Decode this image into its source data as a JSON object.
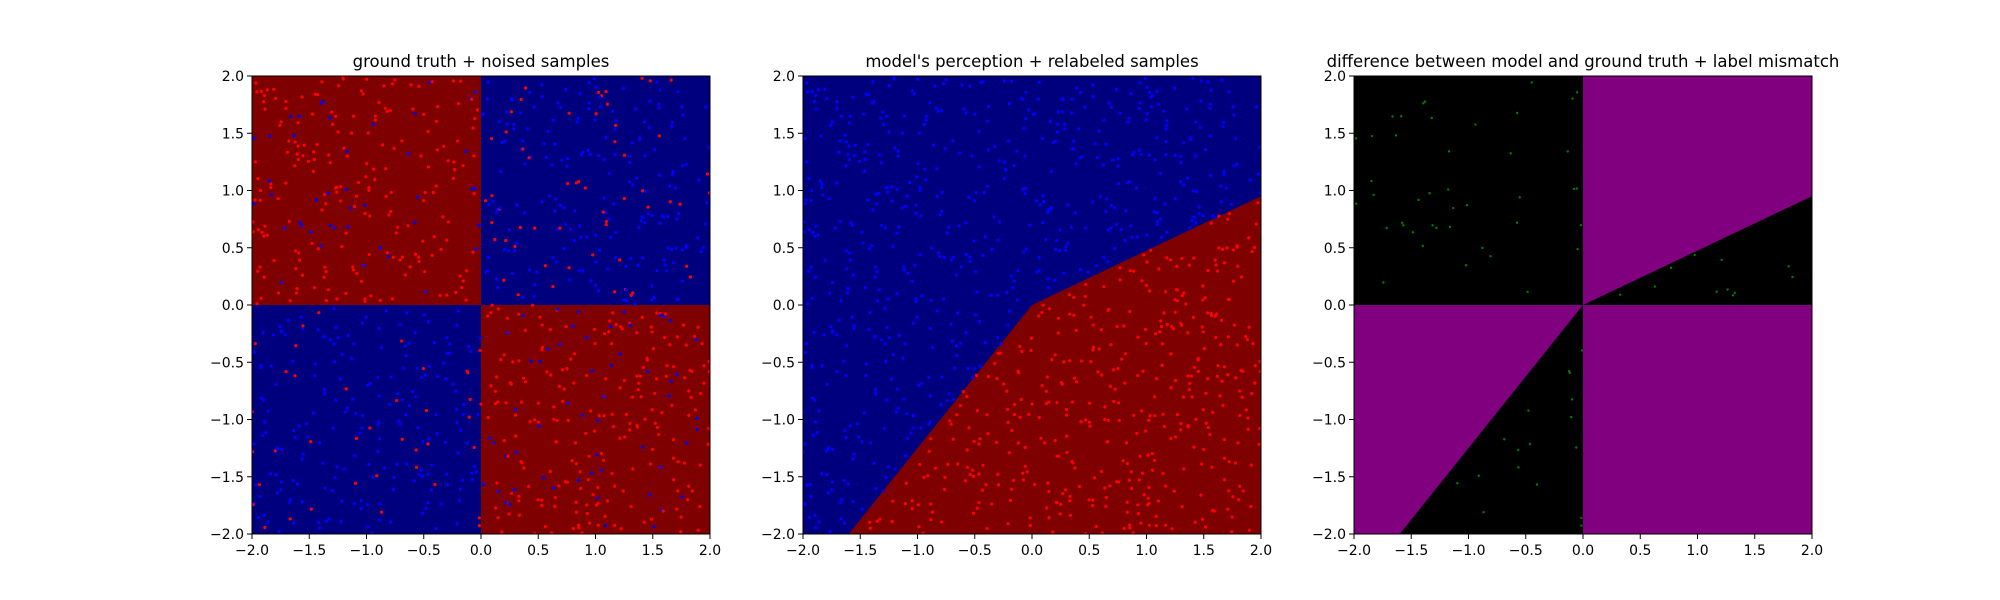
{
  "chart_data": [
    {
      "type": "scatter",
      "title": "ground truth + noised samples",
      "xlim": [
        -2,
        2
      ],
      "ylim": [
        -2,
        2
      ],
      "xticks": [
        "−2.0",
        "−1.5",
        "−1.0",
        "−0.5",
        "0.0",
        "0.5",
        "1.0",
        "1.5",
        "2.0"
      ],
      "yticks": [
        "−2.0",
        "−1.5",
        "−1.0",
        "−0.5",
        "0.0",
        "0.5",
        "1.0",
        "1.5",
        "2.0"
      ],
      "grid": false,
      "background_regions": "xor quadrants: dark red where x*y<0, navy where x*y>0",
      "region_colors": {
        "positive_xy": "#00007f",
        "negative_xy": "#7f0000"
      },
      "point_colors": {
        "red": "#ff0000",
        "blue": "#0000ff"
      },
      "point_count_approx": 1000
    },
    {
      "type": "scatter",
      "title": "model's perception + relabeled samples",
      "xlim": [
        -2,
        2
      ],
      "ylim": [
        -2,
        2
      ],
      "xticks": [
        "−2.0",
        "−1.5",
        "−1.0",
        "−0.5",
        "0.0",
        "0.5",
        "1.0",
        "1.5",
        "2.0"
      ],
      "yticks": [
        "−2.0",
        "−1.5",
        "−1.0",
        "−0.5",
        "0.0",
        "0.5",
        "1.0",
        "1.5",
        "2.0"
      ],
      "grid": false,
      "decision_boundary": [
        [
          -1.6,
          -2.0
        ],
        [
          0.0,
          0.0
        ],
        [
          2.0,
          0.95
        ]
      ],
      "region_colors": {
        "above": "#00007f",
        "below": "#7f0000"
      },
      "point_colors": {
        "red": "#ff0000",
        "blue": "#0000ff"
      },
      "point_count_approx": 1000
    },
    {
      "type": "scatter",
      "title": "difference between model and ground truth + label mismatch",
      "xlim": [
        -2,
        2
      ],
      "ylim": [
        -2,
        2
      ],
      "xticks": [
        "−2.0",
        "−1.5",
        "−1.0",
        "−0.5",
        "0.0",
        "0.5",
        "1.0",
        "1.5",
        "2.0"
      ],
      "yticks": [
        "−2.0",
        "−1.5",
        "−1.0",
        "−0.5",
        "0.0",
        "0.5",
        "1.0",
        "1.5",
        "2.0"
      ],
      "grid": false,
      "region_colors": {
        "agree": "#000000",
        "differ": "#800080"
      },
      "point_colors": {
        "mismatch": "#008000"
      },
      "point_count_approx": 330
    }
  ]
}
